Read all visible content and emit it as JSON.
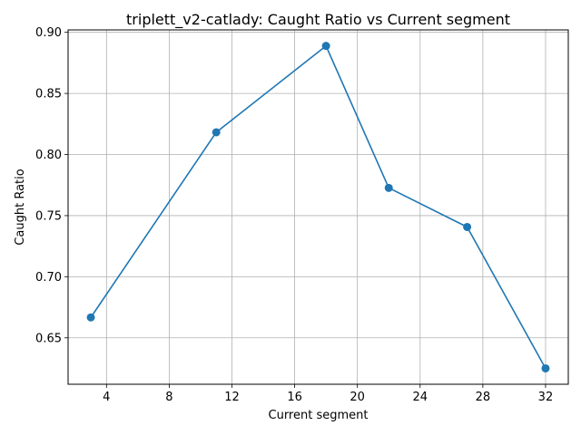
{
  "chart_data": {
    "type": "line",
    "title": "triplett_v2-catlady: Caught Ratio vs Current segment",
    "xlabel": "Current segment",
    "ylabel": "Caught Ratio",
    "xlim": [
      1.55,
      33.45
    ],
    "ylim": [
      0.612,
      0.902
    ],
    "xticks": [
      4,
      8,
      12,
      16,
      20,
      24,
      28,
      32
    ],
    "yticks": [
      0.65,
      0.7,
      0.75,
      0.8,
      0.85,
      0.9
    ],
    "ytick_labels": [
      "0.65",
      "0.70",
      "0.75",
      "0.80",
      "0.85",
      "0.90"
    ],
    "grid": true,
    "series": [
      {
        "color": "#1f77b4",
        "marker": "circle",
        "x": [
          3,
          11,
          18,
          22,
          27,
          32
        ],
        "y": [
          0.6667,
          0.8182,
          0.8889,
          0.7727,
          0.7407,
          0.625
        ]
      }
    ]
  }
}
